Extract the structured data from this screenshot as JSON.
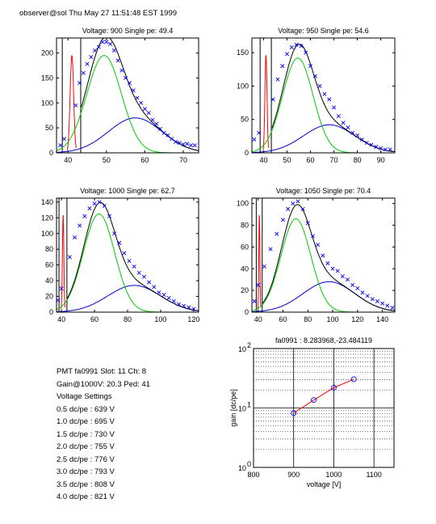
{
  "header": {
    "text": "observer@sol Thu May 27 11:51:48 EST 1999"
  },
  "info": {
    "lines": [
      "PMT fa0991 Slot: 11 Ch: 8",
      "Gain@1000V: 20.3 Ped: 41",
      "Voltage Settings",
      "0.5 dc/pe : 639 V",
      "1.0 dc/pe : 695 V",
      "1.5 dc/pe : 730 V",
      "2.0 dc/pe : 755 V",
      "2.5 dc/pe : 776 V",
      "3.0 dc/pe : 793 V",
      "3.5 dc/pe : 808 V",
      "4.0 dc/pe : 821 V"
    ]
  },
  "colors": {
    "data": "#0000ff",
    "total": "#000000",
    "single_pe": "#00cc00",
    "multi_pe": "#0000cc",
    "pedestal": "#ff0000"
  },
  "chart_data": [
    {
      "type": "scatter",
      "title": "Voltage: 900 Single pe: 49.4",
      "xlim": [
        37,
        74
      ],
      "ylim": [
        0,
        230
      ],
      "xticks": [
        40,
        50,
        60,
        70
      ],
      "yticks": [
        0,
        50,
        100,
        150,
        200
      ],
      "pedestal": 41,
      "fit": {
        "spe_mu": 49.4,
        "spe_sigma": 4.5,
        "spe_amp": 195,
        "mpe_mu": 57.5,
        "mpe_sigma": 7.0,
        "mpe_amp": 70
      },
      "series": [
        {
          "x": [
            38,
            39,
            42,
            43,
            44,
            45,
            46,
            47,
            48,
            49,
            50,
            51,
            52,
            53,
            54,
            55,
            56,
            57,
            58,
            59,
            60,
            61,
            62,
            63,
            64,
            65,
            66,
            67,
            68,
            69,
            70,
            71,
            72,
            73
          ],
          "y": [
            15,
            28,
            95,
            140,
            160,
            178,
            192,
            205,
            212,
            222,
            222,
            218,
            205,
            185,
            165,
            150,
            140,
            125,
            110,
            100,
            88,
            80,
            66,
            58,
            48,
            40,
            35,
            28,
            22,
            20,
            17,
            18,
            15,
            15
          ]
        }
      ]
    },
    {
      "type": "scatter",
      "title": "Voltage: 950 Single pe: 54.6",
      "xlim": [
        35,
        96
      ],
      "ylim": [
        0,
        172
      ],
      "xticks": [
        40,
        50,
        60,
        70,
        80,
        90
      ],
      "yticks": [
        0,
        50,
        100,
        150
      ],
      "pedestal": 41,
      "fit": {
        "spe_mu": 54.6,
        "spe_sigma": 6.5,
        "spe_amp": 142,
        "mpe_mu": 68,
        "mpe_sigma": 11,
        "mpe_amp": 42
      },
      "series": [
        {
          "x": [
            36,
            38,
            44,
            46,
            48,
            50,
            52,
            54,
            56,
            58,
            60,
            62,
            64,
            66,
            68,
            70,
            72,
            74,
            76,
            78,
            80,
            82,
            84,
            86,
            88,
            90,
            92,
            94
          ],
          "y": [
            20,
            30,
            80,
            110,
            130,
            148,
            158,
            162,
            160,
            150,
            130,
            115,
            100,
            88,
            80,
            68,
            55,
            45,
            38,
            30,
            26,
            20,
            15,
            12,
            9,
            7,
            5,
            5
          ]
        }
      ]
    },
    {
      "type": "scatter",
      "title": "Voltage: 1000 Single pe: 62.7",
      "xlim": [
        37,
        123
      ],
      "ylim": [
        0,
        145
      ],
      "xticks": [
        40,
        60,
        80,
        100,
        120
      ],
      "yticks": [
        0,
        20,
        40,
        60,
        80,
        100,
        120,
        140
      ],
      "pedestal": 41,
      "fit": {
        "spe_mu": 62.7,
        "spe_sigma": 9.5,
        "spe_amp": 125,
        "mpe_mu": 84,
        "mpe_sigma": 16,
        "mpe_amp": 34
      },
      "series": [
        {
          "x": [
            38,
            40,
            45,
            48,
            51,
            54,
            57,
            60,
            63,
            66,
            69,
            72,
            75,
            78,
            81,
            84,
            87,
            90,
            93,
            96,
            99,
            102,
            105,
            108,
            111,
            114,
            117,
            120
          ],
          "y": [
            15,
            30,
            70,
            95,
            110,
            122,
            132,
            138,
            140,
            135,
            122,
            100,
            88,
            75,
            65,
            58,
            50,
            45,
            38,
            32,
            25,
            22,
            18,
            14,
            10,
            8,
            6,
            4
          ]
        }
      ]
    },
    {
      "type": "scatter",
      "title": "Voltage: 1050 Single pe: 70.4",
      "xlim": [
        35,
        150
      ],
      "ylim": [
        0,
        105
      ],
      "xticks": [
        40,
        60,
        80,
        100,
        120,
        140
      ],
      "yticks": [
        0,
        20,
        40,
        60,
        80,
        100
      ],
      "pedestal": 41,
      "fit": {
        "spe_mu": 70.4,
        "spe_sigma": 12,
        "spe_amp": 86,
        "mpe_mu": 97,
        "mpe_sigma": 21,
        "mpe_amp": 28
      },
      "series": [
        {
          "x": [
            37,
            40,
            45,
            50,
            55,
            60,
            64,
            68,
            72,
            76,
            80,
            84,
            88,
            92,
            96,
            100,
            104,
            108,
            112,
            116,
            120,
            124,
            128,
            132,
            136,
            140,
            144,
            148
          ],
          "y": [
            10,
            25,
            42,
            58,
            72,
            85,
            95,
            100,
            102,
            95,
            82,
            70,
            62,
            52,
            45,
            40,
            38,
            33,
            30,
            25,
            22,
            18,
            15,
            12,
            10,
            8,
            6,
            4
          ]
        }
      ]
    },
    {
      "type": "line",
      "title": "fa0991 : 8.283968,-23.484119",
      "xlabel": "voltage [V]",
      "ylabel": "gain [dc/pe]",
      "xlim": [
        800,
        1150
      ],
      "ylim": [
        1,
        100
      ],
      "yscale": "log",
      "xticks": [
        800,
        900,
        1000,
        1100
      ],
      "yticks": [
        {
          "base": "10",
          "exp": "0"
        },
        {
          "base": "10",
          "exp": "1"
        },
        {
          "base": "10",
          "exp": "2"
        }
      ],
      "grid": true,
      "series": [
        {
          "x": [
            900,
            950,
            1000,
            1050
          ],
          "y": [
            8.2,
            13.6,
            21.9,
            30.5
          ]
        }
      ]
    }
  ]
}
